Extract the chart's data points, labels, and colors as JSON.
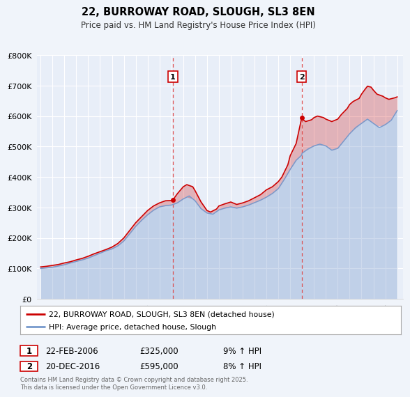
{
  "title": "22, BURROWAY ROAD, SLOUGH, SL3 8EN",
  "subtitle": "Price paid vs. HM Land Registry's House Price Index (HPI)",
  "ylim": [
    0,
    800000
  ],
  "yticks": [
    0,
    100000,
    200000,
    300000,
    400000,
    500000,
    600000,
    700000,
    800000
  ],
  "ytick_labels": [
    "£0",
    "£100K",
    "£200K",
    "£300K",
    "£400K",
    "£500K",
    "£600K",
    "£700K",
    "£800K"
  ],
  "xlim_start": 1994.7,
  "xlim_end": 2025.5,
  "xticks": [
    1995,
    1996,
    1997,
    1998,
    1999,
    2000,
    2001,
    2002,
    2003,
    2004,
    2005,
    2006,
    2007,
    2008,
    2009,
    2010,
    2011,
    2012,
    2013,
    2014,
    2015,
    2016,
    2017,
    2018,
    2019,
    2020,
    2021,
    2022,
    2023,
    2024,
    2025
  ],
  "background_color": "#f0f4fa",
  "plot_bg_color": "#e8eef8",
  "grid_color": "#ffffff",
  "red_line_color": "#cc0000",
  "blue_line_color": "#7799cc",
  "vline_color": "#dd4444",
  "marker1_x": 2006.13,
  "marker1_y": 325000,
  "marker2_x": 2016.97,
  "marker2_y": 595000,
  "annotation1_label": "1",
  "annotation1_date": "22-FEB-2006",
  "annotation1_price": "£325,000",
  "annotation1_hpi": "9% ↑ HPI",
  "annotation2_label": "2",
  "annotation2_date": "20-DEC-2016",
  "annotation2_price": "£595,000",
  "annotation2_hpi": "8% ↑ HPI",
  "legend_label_red": "22, BURROWAY ROAD, SLOUGH, SL3 8EN (detached house)",
  "legend_label_blue": "HPI: Average price, detached house, Slough",
  "footer_text": "Contains HM Land Registry data © Crown copyright and database right 2025.\nThis data is licensed under the Open Government Licence v3.0.",
  "red_hpi_data": [
    [
      1995.0,
      105000
    ],
    [
      1995.5,
      107000
    ],
    [
      1996.0,
      110000
    ],
    [
      1996.5,
      113000
    ],
    [
      1997.0,
      118000
    ],
    [
      1997.5,
      122000
    ],
    [
      1998.0,
      128000
    ],
    [
      1998.5,
      133000
    ],
    [
      1999.0,
      140000
    ],
    [
      1999.5,
      148000
    ],
    [
      2000.0,
      155000
    ],
    [
      2000.5,
      162000
    ],
    [
      2001.0,
      170000
    ],
    [
      2001.5,
      182000
    ],
    [
      2002.0,
      200000
    ],
    [
      2002.5,
      225000
    ],
    [
      2003.0,
      250000
    ],
    [
      2003.5,
      270000
    ],
    [
      2004.0,
      290000
    ],
    [
      2004.5,
      305000
    ],
    [
      2005.0,
      315000
    ],
    [
      2005.5,
      322000
    ],
    [
      2006.0,
      323000
    ],
    [
      2006.13,
      325000
    ],
    [
      2006.5,
      345000
    ],
    [
      2007.0,
      368000
    ],
    [
      2007.3,
      375000
    ],
    [
      2007.8,
      368000
    ],
    [
      2008.0,
      355000
    ],
    [
      2008.5,
      318000
    ],
    [
      2009.0,
      290000
    ],
    [
      2009.3,
      285000
    ],
    [
      2009.8,
      295000
    ],
    [
      2010.0,
      305000
    ],
    [
      2010.5,
      312000
    ],
    [
      2011.0,
      318000
    ],
    [
      2011.5,
      310000
    ],
    [
      2012.0,
      315000
    ],
    [
      2012.5,
      322000
    ],
    [
      2013.0,
      332000
    ],
    [
      2013.5,
      342000
    ],
    [
      2014.0,
      358000
    ],
    [
      2014.5,
      368000
    ],
    [
      2015.0,
      385000
    ],
    [
      2015.3,
      400000
    ],
    [
      2015.8,
      440000
    ],
    [
      2016.0,
      470000
    ],
    [
      2016.5,
      510000
    ],
    [
      2016.97,
      595000
    ],
    [
      2017.0,
      590000
    ],
    [
      2017.3,
      582000
    ],
    [
      2017.8,
      588000
    ],
    [
      2018.0,
      595000
    ],
    [
      2018.3,
      600000
    ],
    [
      2018.8,
      595000
    ],
    [
      2019.0,
      590000
    ],
    [
      2019.5,
      582000
    ],
    [
      2020.0,
      590000
    ],
    [
      2020.3,
      605000
    ],
    [
      2020.8,
      625000
    ],
    [
      2021.0,
      638000
    ],
    [
      2021.3,
      648000
    ],
    [
      2021.8,
      658000
    ],
    [
      2022.0,
      672000
    ],
    [
      2022.3,
      688000
    ],
    [
      2022.5,
      698000
    ],
    [
      2022.8,
      695000
    ],
    [
      2023.0,
      685000
    ],
    [
      2023.3,
      672000
    ],
    [
      2023.8,
      665000
    ],
    [
      2024.0,
      660000
    ],
    [
      2024.3,
      655000
    ],
    [
      2024.8,
      660000
    ],
    [
      2025.0,
      663000
    ]
  ],
  "blue_hpi_data": [
    [
      1995.0,
      100000
    ],
    [
      1995.5,
      102000
    ],
    [
      1996.0,
      104000
    ],
    [
      1996.5,
      108000
    ],
    [
      1997.0,
      112000
    ],
    [
      1997.5,
      118000
    ],
    [
      1998.0,
      123000
    ],
    [
      1998.5,
      128000
    ],
    [
      1999.0,
      134000
    ],
    [
      1999.5,
      142000
    ],
    [
      2000.0,
      150000
    ],
    [
      2000.5,
      158000
    ],
    [
      2001.0,
      164000
    ],
    [
      2001.5,
      174000
    ],
    [
      2002.0,
      190000
    ],
    [
      2002.5,
      214000
    ],
    [
      2003.0,
      238000
    ],
    [
      2003.5,
      258000
    ],
    [
      2004.0,
      276000
    ],
    [
      2004.5,
      291000
    ],
    [
      2005.0,
      302000
    ],
    [
      2005.5,
      306000
    ],
    [
      2006.0,
      308000
    ],
    [
      2006.5,
      315000
    ],
    [
      2007.0,
      328000
    ],
    [
      2007.5,
      338000
    ],
    [
      2008.0,
      322000
    ],
    [
      2008.5,
      296000
    ],
    [
      2009.0,
      282000
    ],
    [
      2009.5,
      278000
    ],
    [
      2010.0,
      292000
    ],
    [
      2010.5,
      298000
    ],
    [
      2011.0,
      302000
    ],
    [
      2011.5,
      298000
    ],
    [
      2012.0,
      302000
    ],
    [
      2012.5,
      308000
    ],
    [
      2013.0,
      316000
    ],
    [
      2013.5,
      324000
    ],
    [
      2014.0,
      334000
    ],
    [
      2014.5,
      346000
    ],
    [
      2015.0,
      362000
    ],
    [
      2015.5,
      392000
    ],
    [
      2016.0,
      425000
    ],
    [
      2016.5,
      455000
    ],
    [
      2016.97,
      472000
    ],
    [
      2017.0,
      478000
    ],
    [
      2017.5,
      492000
    ],
    [
      2018.0,
      502000
    ],
    [
      2018.5,
      508000
    ],
    [
      2019.0,
      502000
    ],
    [
      2019.5,
      488000
    ],
    [
      2020.0,
      494000
    ],
    [
      2020.5,
      518000
    ],
    [
      2021.0,
      542000
    ],
    [
      2021.5,
      562000
    ],
    [
      2022.0,
      576000
    ],
    [
      2022.5,
      590000
    ],
    [
      2023.0,
      576000
    ],
    [
      2023.5,
      562000
    ],
    [
      2024.0,
      572000
    ],
    [
      2024.5,
      586000
    ],
    [
      2025.0,
      618000
    ]
  ]
}
